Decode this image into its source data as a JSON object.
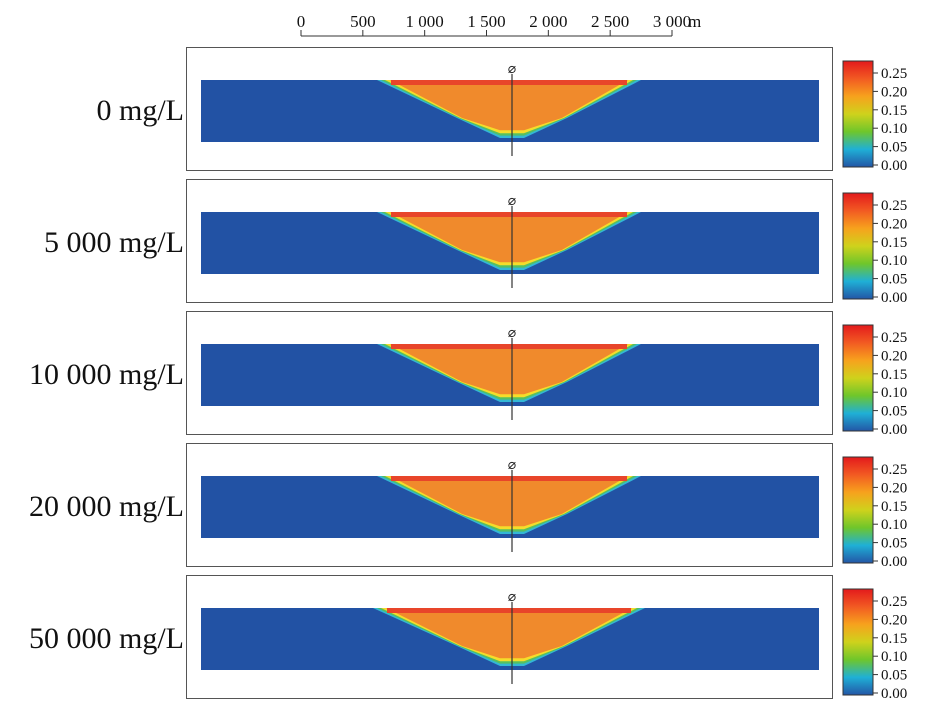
{
  "scale_bar": {
    "ticks": [
      "0",
      "500",
      "1 000",
      "1 500",
      "2 000",
      "2 500",
      "3 000"
    ],
    "unit": "m"
  },
  "well_symbol": "⌀",
  "colorbar": {
    "ticks": [
      "0.25",
      "0.20",
      "0.15",
      "0.10",
      "0.05",
      "0.00"
    ],
    "colors": [
      "#e31a1c",
      "#f25a22",
      "#f7a21d",
      "#cfd21c",
      "#6fc62b",
      "#1fb0d6",
      "#2356a6"
    ]
  },
  "model_colors": {
    "background": "#2252a4",
    "plume_core": "#f08a2c",
    "plume_top": "#e8452a",
    "rim_yellow": "#f5dd2a",
    "rim_green": "#56c060",
    "rim_cyan": "#33b7d5"
  },
  "panels": [
    {
      "label": "0 mg/L"
    },
    {
      "label": "5 000 mg/L"
    },
    {
      "label": "10 000 mg/L"
    },
    {
      "label": "20 000 mg/L"
    },
    {
      "label": "50 000 mg/L"
    }
  ]
}
